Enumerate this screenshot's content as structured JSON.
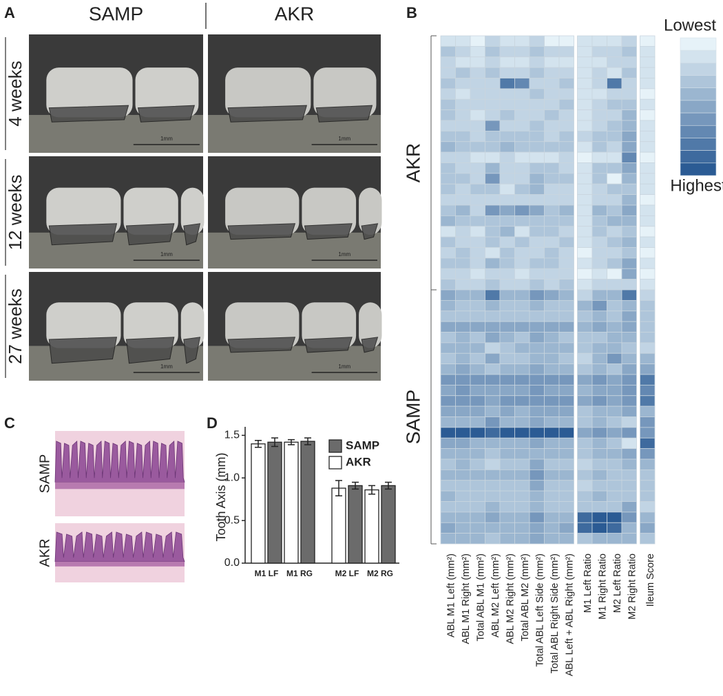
{
  "panel_labels": [
    "A",
    "B",
    "C",
    "D"
  ],
  "photos": {
    "columns": [
      "SAMP",
      "AKR"
    ],
    "rows": [
      "4 weeks",
      "12 weeks",
      "27 weeks"
    ],
    "scale_bar": "1mm"
  },
  "histology": {
    "labels": [
      "SAMP",
      "AKR"
    ]
  },
  "chart_data": [
    {
      "type": "heatmap",
      "legend": {
        "low": "Lowest",
        "high": "Highest"
      },
      "color_low": "#e6f2f8",
      "color_high": "#2b5b94",
      "zlim": [
        0,
        10
      ],
      "column_groups": [
        [
          "ABL M1 Left (mm²)",
          "ABL M1 Right (mm²)",
          "Total ABL M1 (mm²)",
          "ABL M2 Left (mm²)",
          "ABL M2 Right (mm²)",
          "Total ABL M2 (mm²)",
          "Total ABL Left Side (mm²)",
          "Total ABL Right Side (mm²)",
          "ABL Left + ABL Right (mm²)"
        ],
        [
          "M1 Left Ratio",
          "M1 Right Ratio",
          "M2 Left Ratio",
          "M2 Right Ratio"
        ],
        [
          "Ileum Score"
        ]
      ],
      "row_groups": [
        {
          "name": "AKR",
          "values": [
            [
              1,
              1,
              0,
              2,
              1,
              1,
              2,
              0,
              0,
              1,
              1,
              1,
              2,
              0
            ],
            [
              3,
              2,
              1,
              3,
              2,
              2,
              3,
              2,
              2,
              1,
              2,
              2,
              3,
              1
            ],
            [
              2,
              1,
              1,
              2,
              1,
              1,
              2,
              1,
              1,
              1,
              1,
              2,
              2,
              1
            ],
            [
              2,
              3,
              2,
              3,
              2,
              2,
              3,
              2,
              2,
              1,
              2,
              1,
              3,
              1
            ],
            [
              3,
              2,
              2,
              2,
              8,
              7,
              2,
              2,
              3,
              1,
              2,
              8,
              2,
              1
            ],
            [
              2,
              1,
              2,
              2,
              2,
              2,
              3,
              2,
              2,
              1,
              1,
              2,
              2,
              0
            ],
            [
              3,
              2,
              2,
              2,
              2,
              2,
              2,
              2,
              3,
              1,
              2,
              3,
              3,
              1
            ],
            [
              3,
              2,
              1,
              2,
              3,
              2,
              2,
              3,
              2,
              1,
              2,
              2,
              4,
              0
            ],
            [
              2,
              2,
              2,
              6,
              2,
              2,
              3,
              2,
              2,
              1,
              2,
              3,
              4,
              1
            ],
            [
              3,
              3,
              2,
              3,
              3,
              3,
              3,
              2,
              3,
              2,
              3,
              3,
              5,
              1
            ],
            [
              4,
              3,
              3,
              3,
              4,
              3,
              3,
              3,
              3,
              1,
              3,
              2,
              5,
              1
            ],
            [
              2,
              2,
              1,
              1,
              2,
              1,
              1,
              1,
              2,
              0,
              1,
              1,
              7,
              0
            ],
            [
              3,
              2,
              2,
              4,
              2,
              2,
              3,
              3,
              2,
              1,
              3,
              3,
              5,
              1
            ],
            [
              3,
              3,
              2,
              6,
              2,
              2,
              4,
              3,
              3,
              1,
              3,
              0,
              4,
              1
            ],
            [
              3,
              2,
              3,
              3,
              1,
              3,
              4,
              2,
              2,
              1,
              2,
              3,
              3,
              1
            ],
            [
              2,
              2,
              2,
              2,
              2,
              2,
              2,
              2,
              2,
              1,
              2,
              2,
              4,
              0
            ],
            [
              3,
              4,
              2,
              6,
              5,
              6,
              5,
              3,
              4,
              1,
              4,
              3,
              5,
              1
            ],
            [
              4,
              3,
              3,
              3,
              3,
              3,
              3,
              3,
              3,
              1,
              3,
              4,
              4,
              1
            ],
            [
              1,
              2,
              1,
              3,
              4,
              1,
              3,
              3,
              2,
              1,
              3,
              2,
              3,
              0
            ],
            [
              3,
              2,
              2,
              3,
              2,
              3,
              2,
              2,
              3,
              1,
              2,
              3,
              4,
              1
            ],
            [
              2,
              3,
              2,
              1,
              3,
              2,
              2,
              3,
              2,
              0,
              2,
              2,
              3,
              0
            ],
            [
              3,
              3,
              2,
              4,
              3,
              2,
              3,
              3,
              2,
              1,
              2,
              3,
              5,
              1
            ],
            [
              2,
              2,
              1,
              2,
              2,
              1,
              2,
              2,
              2,
              0,
              1,
              0,
              5,
              0
            ],
            [
              3,
              2,
              2,
              3,
              2,
              2,
              3,
              2,
              3,
              1,
              2,
              2,
              2,
              1
            ]
          ]
        },
        {
          "name": "SAMP",
          "values": [
            [
              5,
              4,
              4,
              8,
              4,
              4,
              6,
              5,
              4,
              2,
              4,
              4,
              8,
              2
            ],
            [
              4,
              3,
              3,
              4,
              3,
              3,
              4,
              3,
              3,
              4,
              6,
              3,
              4,
              3
            ],
            [
              3,
              3,
              3,
              3,
              3,
              3,
              3,
              3,
              3,
              3,
              4,
              3,
              5,
              3
            ],
            [
              5,
              5,
              5,
              5,
              5,
              5,
              5,
              5,
              5,
              4,
              5,
              4,
              5,
              3
            ],
            [
              3,
              4,
              3,
              5,
              4,
              3,
              5,
              4,
              3,
              3,
              3,
              4,
              4,
              3
            ],
            [
              4,
              4,
              4,
              2,
              3,
              4,
              4,
              4,
              4,
              3,
              4,
              4,
              3,
              2
            ],
            [
              3,
              4,
              3,
              5,
              3,
              3,
              4,
              4,
              3,
              2,
              4,
              6,
              4,
              4
            ],
            [
              4,
              5,
              4,
              3,
              4,
              4,
              5,
              4,
              4,
              3,
              4,
              3,
              5,
              5
            ],
            [
              6,
              6,
              6,
              6,
              6,
              6,
              6,
              6,
              6,
              5,
              6,
              5,
              6,
              8
            ],
            [
              5,
              6,
              5,
              5,
              5,
              5,
              6,
              5,
              5,
              4,
              5,
              5,
              6,
              7
            ],
            [
              6,
              6,
              6,
              5,
              6,
              6,
              6,
              6,
              6,
              5,
              6,
              5,
              6,
              8
            ],
            [
              5,
              5,
              5,
              4,
              5,
              4,
              5,
              5,
              5,
              3,
              4,
              4,
              5,
              4
            ],
            [
              4,
              4,
              4,
              6,
              4,
              4,
              5,
              4,
              4,
              3,
              4,
              3,
              2,
              6
            ],
            [
              10,
              10,
              10,
              9,
              10,
              10,
              10,
              10,
              10,
              5,
              6,
              5,
              6,
              6
            ],
            [
              5,
              5,
              4,
              4,
              4,
              4,
              5,
              4,
              4,
              3,
              4,
              3,
              1,
              9
            ],
            [
              4,
              4,
              4,
              3,
              4,
              4,
              4,
              4,
              4,
              3,
              4,
              4,
              5,
              6
            ],
            [
              3,
              4,
              3,
              2,
              3,
              3,
              5,
              3,
              3,
              2,
              3,
              3,
              4,
              4
            ],
            [
              4,
              4,
              4,
              4,
              4,
              4,
              6,
              4,
              4,
              3,
              4,
              3,
              3,
              3
            ],
            [
              3,
              3,
              3,
              3,
              3,
              3,
              5,
              3,
              3,
              2,
              3,
              3,
              3,
              3
            ],
            [
              4,
              3,
              3,
              3,
              3,
              3,
              4,
              3,
              3,
              3,
              4,
              3,
              3,
              3
            ],
            [
              3,
              3,
              3,
              4,
              3,
              3,
              4,
              3,
              3,
              3,
              3,
              3,
              5,
              2
            ],
            [
              4,
              4,
              4,
              5,
              4,
              4,
              6,
              4,
              4,
              9,
              10,
              10,
              6,
              4
            ],
            [
              5,
              4,
              4,
              4,
              4,
              4,
              5,
              4,
              5,
              9,
              10,
              9,
              4,
              5
            ],
            [
              4,
              4,
              4,
              3,
              4,
              4,
              5,
              4,
              4,
              3,
              4,
              4,
              4,
              3
            ]
          ]
        }
      ]
    },
    {
      "type": "bar",
      "y_label": "Tooth Axis (mm)",
      "categories": [
        "M1 LF",
        "M1 RG",
        "M2 LF",
        "M2 RG"
      ],
      "series": [
        {
          "name": "SAMP",
          "color": "#6b6b6b",
          "values": [
            1.42,
            1.43,
            0.91,
            0.91
          ],
          "errors": [
            0.05,
            0.04,
            0.04,
            0.04
          ]
        },
        {
          "name": "AKR",
          "color": "#ffffff",
          "values": [
            1.4,
            1.42,
            0.88,
            0.86
          ],
          "errors": [
            0.04,
            0.03,
            0.09,
            0.05
          ]
        }
      ],
      "ylim": [
        0,
        1.6
      ],
      "yticks": [
        {
          "value": 0,
          "label": "0.0"
        },
        0.5,
        {
          "value": 1,
          "label": "1.0"
        },
        1.5
      ]
    }
  ]
}
